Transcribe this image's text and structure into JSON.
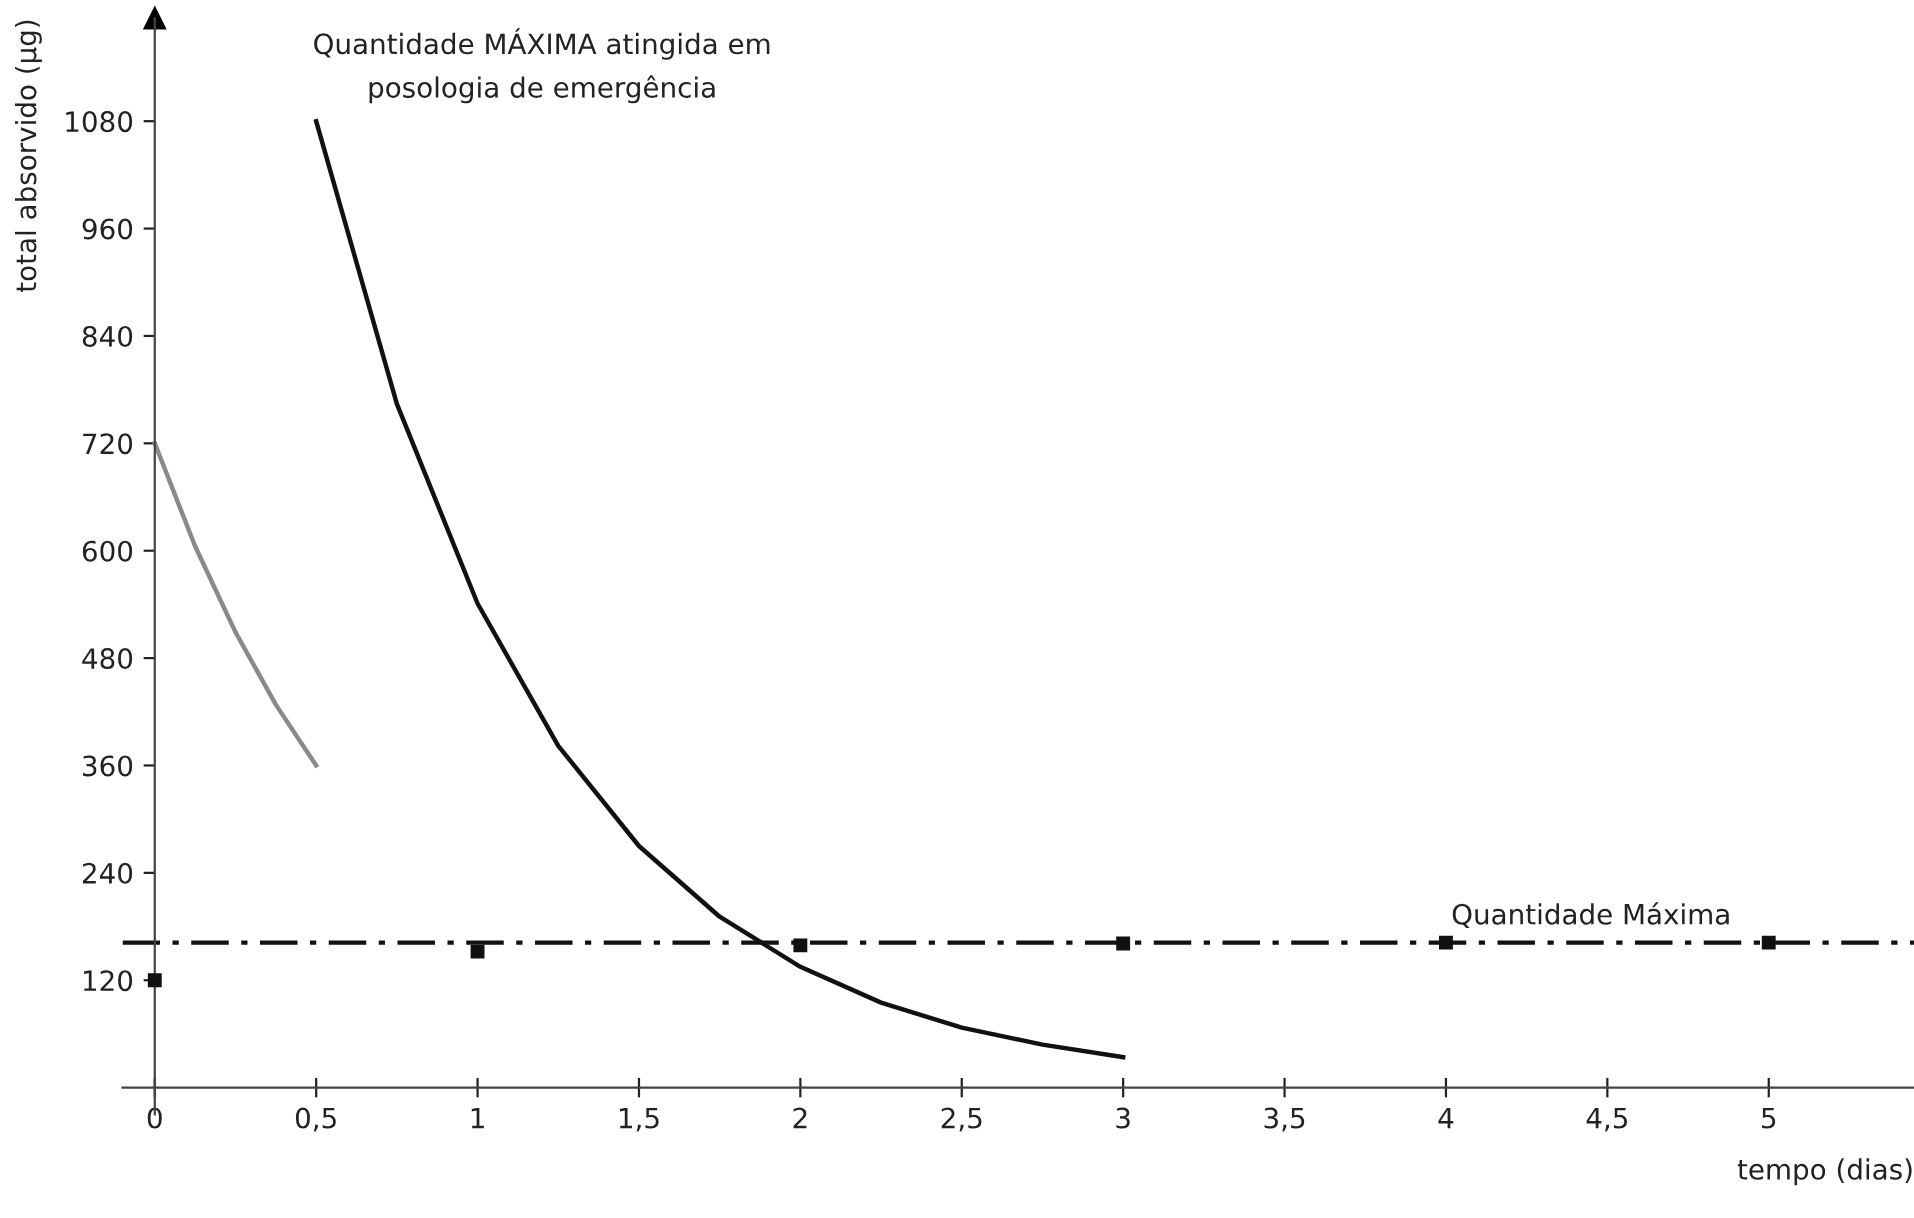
{
  "chart_data": {
    "type": "line",
    "xlabel": "tempo (dias)",
    "ylabel": "total absorvido (μg)",
    "xlim": [
      -0.1,
      5.45
    ],
    "ylim": [
      -30,
      1195
    ],
    "xticks": [
      0,
      {
        "value": 0.5,
        "label": "0,5"
      },
      1,
      {
        "value": 1.5,
        "label": "1,5"
      },
      2,
      {
        "value": 2.5,
        "label": "2,5"
      },
      3,
      {
        "value": 3.5,
        "label": "3,5"
      },
      4,
      {
        "value": 4.5,
        "label": "4,5"
      },
      5
    ],
    "yticks": [
      120,
      240,
      360,
      480,
      600,
      720,
      840,
      960,
      1080
    ],
    "grid": false,
    "legend": false,
    "marker": "none",
    "line_style": "solid",
    "series": [
      {
        "color": "#8a8a8a",
        "x": [
          0,
          0.125,
          0.25,
          0.375,
          0.5
        ],
        "values": [
          720,
          605,
          509,
          428,
          360
        ]
      },
      {
        "color": "#111111",
        "x": [
          0.5,
          0.75,
          1,
          1.25,
          1.5,
          1.75,
          2,
          2.25,
          2.5,
          2.75,
          3
        ],
        "values": [
          1080,
          764,
          541,
          382,
          270,
          191,
          135,
          95,
          67,
          48,
          34
        ]
      },
      {
        "type": "scatter",
        "marker": "square",
        "color": "#111111",
        "x": [
          0,
          1,
          2,
          3,
          4,
          5
        ],
        "values": [
          120,
          152,
          159,
          161,
          162,
          162
        ]
      }
    ],
    "ref_lines": [
      {
        "axis": "y",
        "value": 162,
        "label": "Quantidade Máxima",
        "color": "#111111",
        "line_style": "dashdot"
      }
    ],
    "annotations": [
      {
        "text": "Quantidade MÁXIMA atingida em\nposologia de emergência",
        "x": 0.5,
        "y": 1080
      }
    ]
  }
}
